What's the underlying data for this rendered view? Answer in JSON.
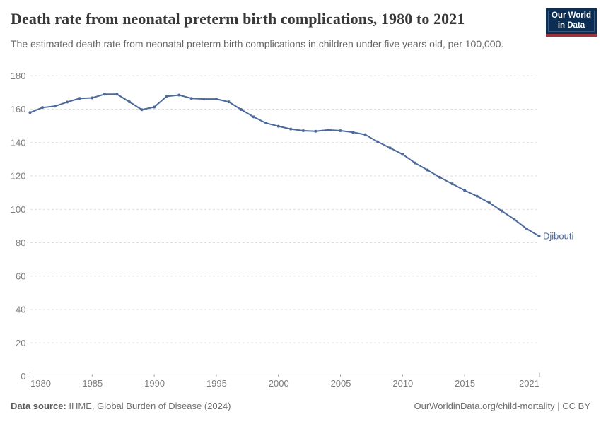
{
  "header": {
    "title": "Death rate from neonatal preterm birth complications, 1980 to 2021",
    "subtitle": "The estimated death rate from neonatal preterm birth complications in children under five years old, per 100,000.",
    "logo": {
      "line1": "Our World",
      "line2": "in Data"
    }
  },
  "chart_data": {
    "type": "line",
    "title": "Death rate from neonatal preterm birth complications, 1980 to 2021",
    "xlabel": "",
    "ylabel": "",
    "ylim": [
      0,
      180
    ],
    "yticks": [
      0,
      20,
      40,
      60,
      80,
      100,
      120,
      140,
      160,
      180
    ],
    "xticks": [
      1980,
      1985,
      1990,
      1995,
      2000,
      2005,
      2010,
      2015,
      2021
    ],
    "grid": "horizontal-dashed",
    "legend_position": "end-of-line-label",
    "colors": {
      "line": "#4C6A9C",
      "grid": "#dcdcdc",
      "axis": "#a0a0a0",
      "tick": "#7d7d7d"
    },
    "series": [
      {
        "name": "Djibouti",
        "color": "#4C6A9C",
        "x": [
          1980,
          1981,
          1982,
          1983,
          1984,
          1985,
          1986,
          1987,
          1988,
          1989,
          1990,
          1991,
          1992,
          1993,
          1994,
          1995,
          1996,
          1997,
          1998,
          1999,
          2000,
          2001,
          2002,
          2003,
          2004,
          2005,
          2006,
          2007,
          2008,
          2009,
          2010,
          2011,
          2012,
          2013,
          2014,
          2015,
          2016,
          2017,
          2018,
          2019,
          2020,
          2021
        ],
        "values": [
          158.0,
          161.0,
          161.8,
          164.3,
          166.5,
          166.8,
          169.0,
          169.0,
          164.4,
          159.7,
          161.3,
          167.7,
          168.5,
          166.5,
          166.1,
          166.1,
          164.4,
          159.8,
          155.4,
          151.7,
          149.8,
          148.1,
          147.1,
          146.8,
          147.6,
          147.1,
          146.2,
          144.7,
          140.5,
          136.8,
          133.0,
          127.8,
          123.6,
          119.2,
          115.3,
          111.4,
          107.9,
          103.9,
          99.0,
          94.0,
          88.3,
          84.0
        ]
      }
    ]
  },
  "footer": {
    "source_label": "Data source:",
    "source_text": " IHME, Global Burden of Disease (2024)",
    "right_text": "OurWorldinData.org/child-mortality | CC BY"
  }
}
